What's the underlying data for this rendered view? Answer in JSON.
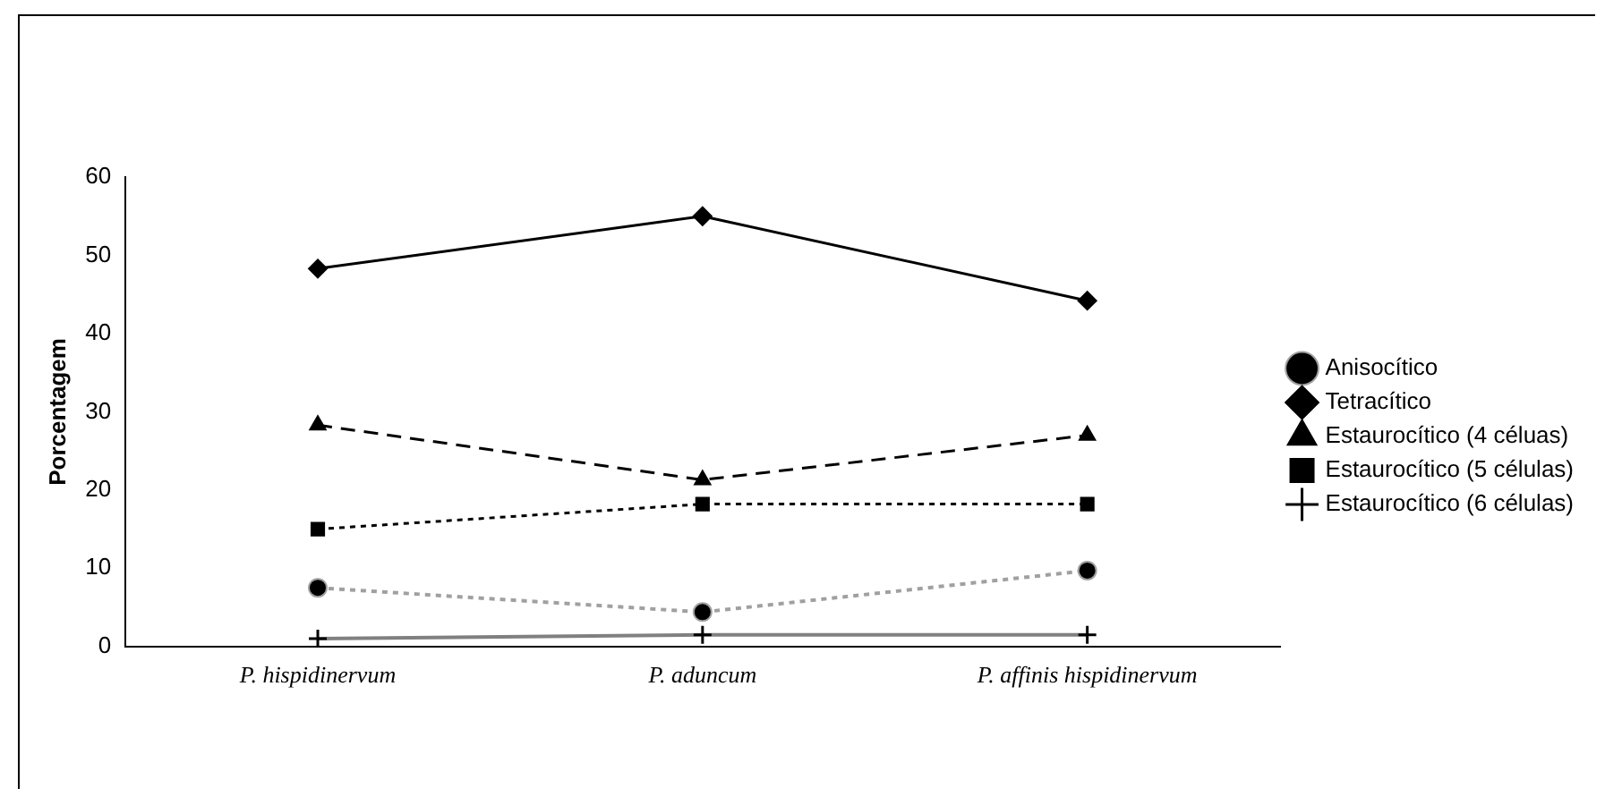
{
  "chart_data": {
    "type": "line",
    "ylabel": "Porcentagem",
    "categories": [
      "P. hispidinervum",
      "P. aduncum",
      "P. affinis hispidinervum"
    ],
    "series": [
      {
        "name": "Anisocítico",
        "color": "#a0a0a0",
        "values": [
          7.5,
          4.4,
          9.7
        ],
        "marker": "circle",
        "line_style": "dotted"
      },
      {
        "name": "Tetracítico",
        "color": "#000000",
        "values": [
          48.3,
          55,
          44.2
        ],
        "marker": "diamond",
        "line_style": "solid"
      },
      {
        "name": "Estaurocítico (4 céluas)",
        "color": "#000000",
        "values": [
          28.3,
          21.3,
          27
        ],
        "marker": "triangle",
        "line_style": "dashed"
      },
      {
        "name": "Estaurocítico (5 células)",
        "color": "#000000",
        "values": [
          15,
          18.2,
          18.2
        ],
        "marker": "square",
        "line_style": "dotted"
      },
      {
        "name": "Estaurocítico (6 células)",
        "color": "#808080",
        "values": [
          1,
          1.5,
          1.5
        ],
        "marker": "cross",
        "line_style": "solid"
      }
    ],
    "ylim": [
      0,
      60
    ],
    "yticks": [
      0,
      10,
      20,
      30,
      40,
      50,
      60
    ],
    "grid": false,
    "legend": "right"
  }
}
